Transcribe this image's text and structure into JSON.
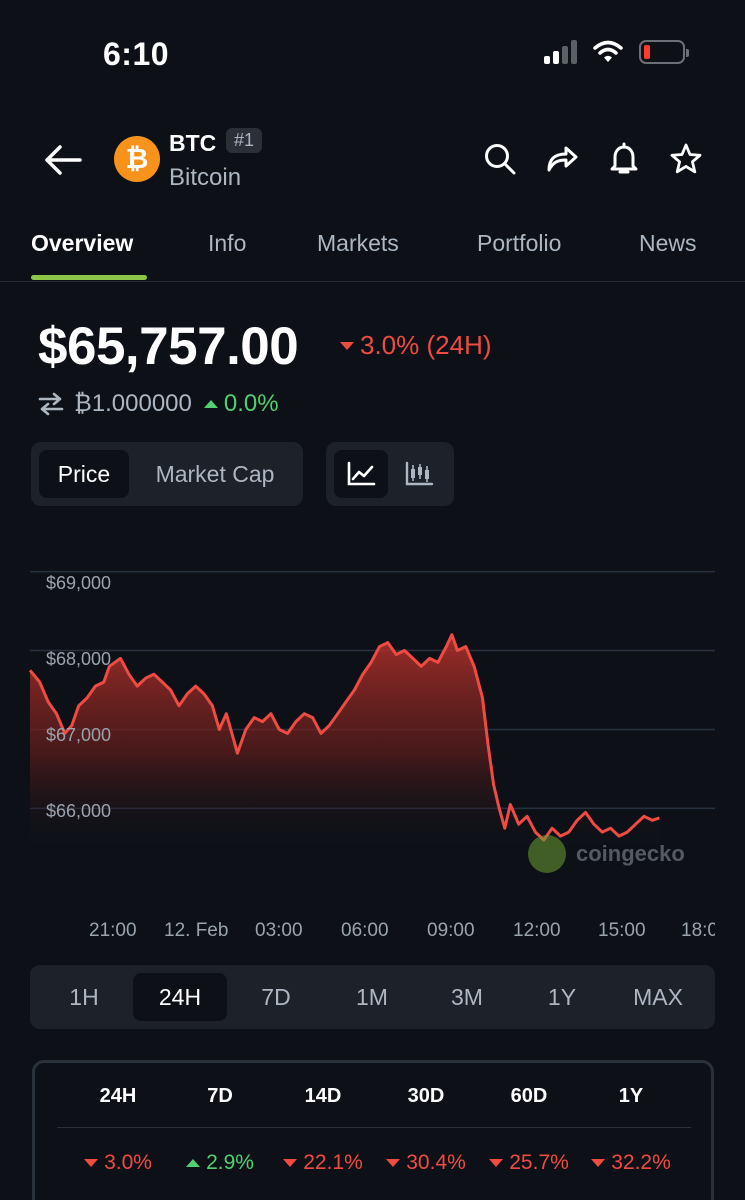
{
  "status": {
    "time": "6:10"
  },
  "header": {
    "symbol": "BTC",
    "rank": "#1",
    "name": "Bitcoin",
    "logo_glyph": "₿",
    "logo_color": "#f7931a"
  },
  "tabs": [
    {
      "label": "Overview",
      "active": true
    },
    {
      "label": "Info"
    },
    {
      "label": "Markets"
    },
    {
      "label": "Portfolio"
    },
    {
      "label": "News"
    }
  ],
  "price": {
    "value": "$65,757.00",
    "change": "3.0% (24H)",
    "change_direction": "down",
    "btc_value": "₿1.000000",
    "btc_change": "0.0%",
    "btc_change_direction": "up"
  },
  "metric_toggle": {
    "price": "Price",
    "market_cap": "Market Cap",
    "selected": "Price"
  },
  "chart_type_toggle": {
    "selected": "line-chart-icon"
  },
  "colors": {
    "down": "#f04b43",
    "up": "#4fd16f",
    "accent": "#8dc647",
    "background": "#0d1117"
  },
  "chart_data": {
    "type": "area",
    "watermark": "coingecko",
    "yticks": [
      "$69,000",
      "$68,000",
      "$67,000",
      "$66,000"
    ],
    "ytick_values": [
      69000,
      68000,
      67000,
      66000
    ],
    "ylim": [
      65600,
      69400
    ],
    "xticks": [
      "21:00",
      "12. Feb",
      "03:00",
      "06:00",
      "09:00",
      "12:00",
      "15:00",
      "18:0"
    ],
    "xtick_hours": [
      0,
      3,
      6,
      9,
      12,
      15,
      18,
      21
    ],
    "xlim_hours": [
      -2.95,
      21.65
    ],
    "series": [
      {
        "values": [
          [
            -2.95,
            67750
          ],
          [
            -2.6,
            67600
          ],
          [
            -2.3,
            67350
          ],
          [
            -2.0,
            67200
          ],
          [
            -1.7,
            66950
          ],
          [
            -1.45,
            67050
          ],
          [
            -1.2,
            67300
          ],
          [
            -0.9,
            67400
          ],
          [
            -0.6,
            67550
          ],
          [
            -0.3,
            67600
          ],
          [
            -0.1,
            67800
          ],
          [
            0.3,
            67900
          ],
          [
            0.6,
            67700
          ],
          [
            0.9,
            67550
          ],
          [
            1.2,
            67650
          ],
          [
            1.5,
            67700
          ],
          [
            1.8,
            67600
          ],
          [
            2.1,
            67500
          ],
          [
            2.4,
            67300
          ],
          [
            2.7,
            67450
          ],
          [
            3.0,
            67550
          ],
          [
            3.3,
            67450
          ],
          [
            3.6,
            67300
          ],
          [
            3.85,
            67000
          ],
          [
            4.1,
            67200
          ],
          [
            4.3,
            66950
          ],
          [
            4.5,
            66700
          ],
          [
            4.8,
            67000
          ],
          [
            5.1,
            67150
          ],
          [
            5.4,
            67100
          ],
          [
            5.7,
            67200
          ],
          [
            6.0,
            67000
          ],
          [
            6.3,
            66950
          ],
          [
            6.6,
            67100
          ],
          [
            6.9,
            67200
          ],
          [
            7.2,
            67150
          ],
          [
            7.5,
            66950
          ],
          [
            7.8,
            67050
          ],
          [
            8.1,
            67200
          ],
          [
            8.4,
            67350
          ],
          [
            8.7,
            67500
          ],
          [
            9.0,
            67700
          ],
          [
            9.3,
            67850
          ],
          [
            9.6,
            68050
          ],
          [
            9.9,
            68100
          ],
          [
            10.2,
            67950
          ],
          [
            10.5,
            68000
          ],
          [
            10.8,
            67900
          ],
          [
            11.1,
            67800
          ],
          [
            11.4,
            67900
          ],
          [
            11.7,
            67850
          ],
          [
            12.0,
            68050
          ],
          [
            12.2,
            68200
          ],
          [
            12.4,
            68000
          ],
          [
            12.7,
            68050
          ],
          [
            13.0,
            67800
          ],
          [
            13.3,
            67400
          ],
          [
            13.5,
            66800
          ],
          [
            13.7,
            66300
          ],
          [
            13.9,
            66000
          ],
          [
            14.1,
            65750
          ],
          [
            14.3,
            66050
          ],
          [
            14.6,
            65800
          ],
          [
            14.9,
            65900
          ],
          [
            15.2,
            65700
          ],
          [
            15.5,
            65600
          ],
          [
            15.8,
            65750
          ],
          [
            16.1,
            65650
          ],
          [
            16.4,
            65700
          ],
          [
            16.7,
            65850
          ],
          [
            17.0,
            65950
          ],
          [
            17.3,
            65800
          ],
          [
            17.6,
            65700
          ],
          [
            17.9,
            65750
          ],
          [
            18.2,
            65650
          ],
          [
            18.5,
            65700
          ],
          [
            18.8,
            65800
          ],
          [
            19.1,
            65900
          ],
          [
            19.4,
            65850
          ],
          [
            19.65,
            65880
          ]
        ]
      }
    ]
  },
  "ranges": {
    "options": [
      "1H",
      "24H",
      "7D",
      "1M",
      "3M",
      "1Y",
      "MAX"
    ],
    "selected": "24H"
  },
  "performance": [
    {
      "period": "24H",
      "value": "3.0%",
      "direction": "down"
    },
    {
      "period": "7D",
      "value": "2.9%",
      "direction": "up"
    },
    {
      "period": "14D",
      "value": "22.1%",
      "direction": "down"
    },
    {
      "period": "30D",
      "value": "30.4%",
      "direction": "down"
    },
    {
      "period": "60D",
      "value": "25.7%",
      "direction": "down"
    },
    {
      "period": "1Y",
      "value": "32.2%",
      "direction": "down"
    }
  ]
}
